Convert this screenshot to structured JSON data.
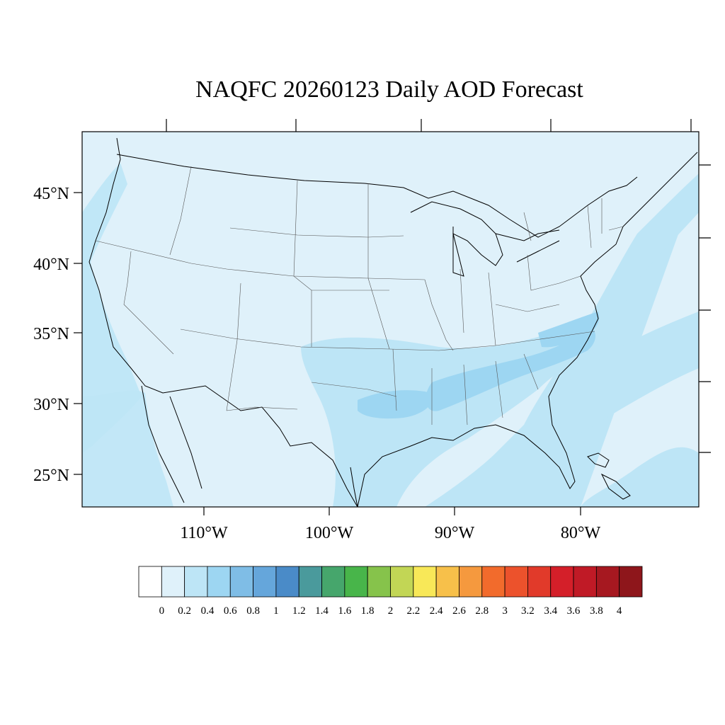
{
  "title": "NAQFC 20260123 Daily AOD Forecast",
  "latitude_labels": [
    "45°N",
    "40°N",
    "35°N",
    "30°N",
    "25°N"
  ],
  "longitude_labels": [
    "110°W",
    "100°W",
    "90°W",
    "80°W"
  ],
  "colorbar": {
    "colors": [
      "#ffffff",
      "#dff1fa",
      "#bde5f6",
      "#9dd6f2",
      "#7fbde6",
      "#65a6db",
      "#4a8bc8",
      "#4a9a9c",
      "#46a66c",
      "#48b54a",
      "#86c34b",
      "#c2d655",
      "#f8e858",
      "#f7c04a",
      "#f5993e",
      "#f26b2c",
      "#ec522c",
      "#e13a2a",
      "#d41f29",
      "#c01a26",
      "#a61820",
      "#8e161b"
    ],
    "labels": [
      "0",
      "0.2",
      "0.4",
      "0.6",
      "0.8",
      "1",
      "1.2",
      "1.4",
      "1.6",
      "1.8",
      "2",
      "2.2",
      "2.4",
      "2.6",
      "2.8",
      "3",
      "3.2",
      "3.4",
      "3.6",
      "3.8",
      "4"
    ]
  },
  "colors": {
    "background_level": "#dff1fa",
    "level_04": "#bde5f6",
    "level_06": "#9dd6f2",
    "outline": "#000000"
  }
}
